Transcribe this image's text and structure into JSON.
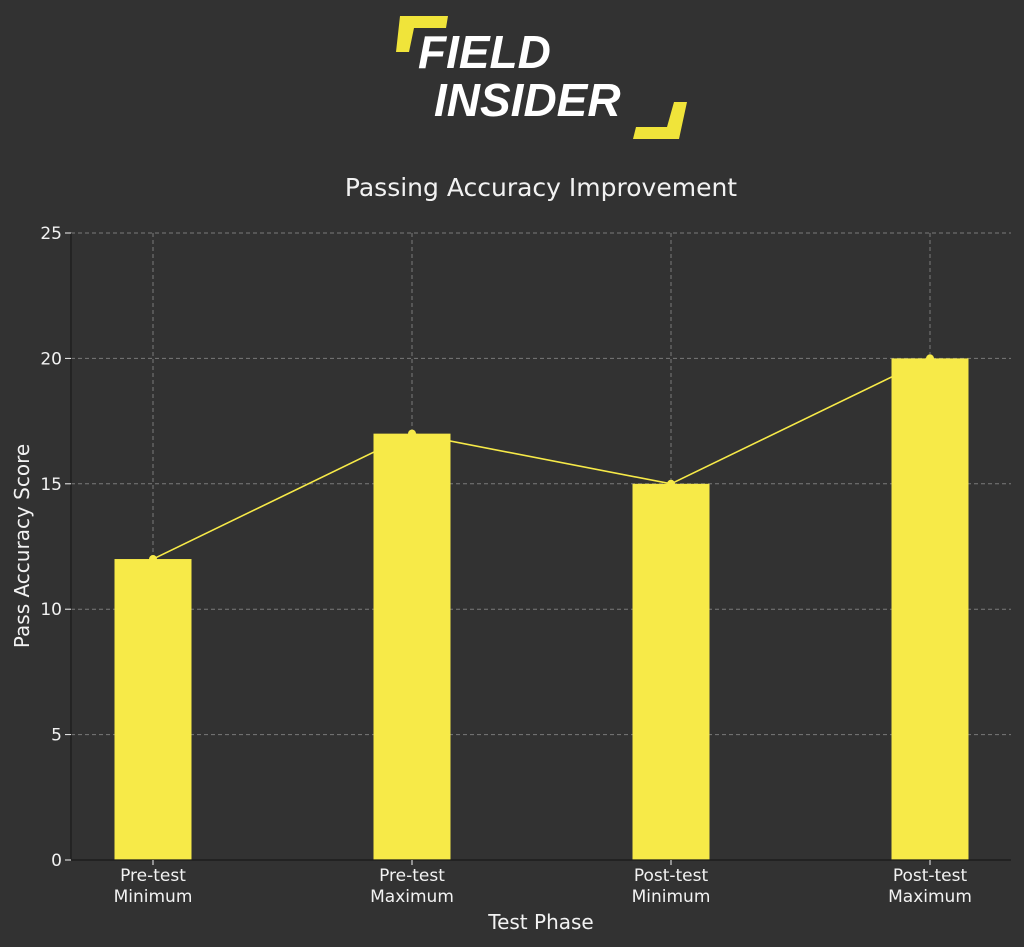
{
  "logo": {
    "line1": "FIELD",
    "line2": "INSIDER",
    "accent_color": "#f0e43a",
    "text_color": "#ffffff"
  },
  "colors": {
    "background": "#323232",
    "bar": "#f7ea48",
    "line": "#f7ea48",
    "grid": "#7a7a7a",
    "axis": "#1a1a1a",
    "text": "#f2f2f2"
  },
  "chart_data": {
    "type": "bar",
    "title": "Passing Accuracy Improvement",
    "xlabel": "Test Phase",
    "ylabel": "Pass Accuracy Score",
    "categories": [
      [
        "Pre-test",
        "Minimum"
      ],
      [
        "Pre-test",
        "Maximum"
      ],
      [
        "Post-test",
        "Minimum"
      ],
      [
        "Post-test",
        "Maximum"
      ]
    ],
    "values": [
      12,
      17,
      15,
      20
    ],
    "overlay_line": true,
    "ylim": [
      0,
      25
    ],
    "yticks": [
      0,
      5,
      10,
      15,
      20,
      25
    ],
    "grid": true,
    "grid_style": "dashed"
  }
}
